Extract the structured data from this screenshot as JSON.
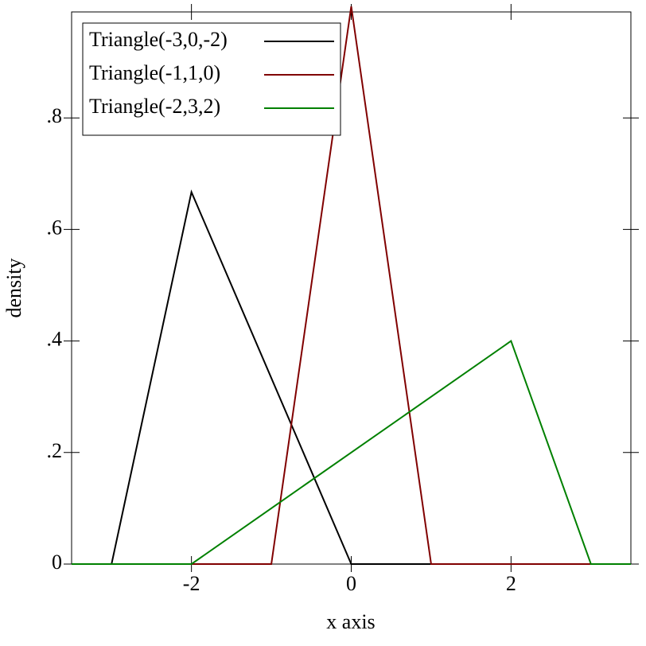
{
  "chart_data": {
    "type": "line",
    "xlabel": "x axis",
    "ylabel": "density",
    "xlim": [
      -3.5,
      3.5
    ],
    "ylim": [
      0,
      0.99
    ],
    "xticks": [
      -2,
      0,
      2
    ],
    "yticks": [
      {
        "value": 0,
        "label": "0"
      },
      {
        "value": 0.2,
        "label": ".2"
      },
      {
        "value": 0.4,
        "label": ".4"
      },
      {
        "value": 0.6,
        "label": ".6"
      },
      {
        "value": 0.8,
        "label": ".8"
      }
    ],
    "legend": "top-left",
    "series": [
      {
        "name": "Triangle(-3,0,-2)",
        "color": "#000000",
        "x": [
          -3.5,
          -3,
          -2,
          0,
          3.5
        ],
        "values": [
          0,
          0,
          0.667,
          0,
          0
        ]
      },
      {
        "name": "Triangle(-1,1,0)",
        "color": "#800000",
        "x": [
          -3.5,
          -1,
          0,
          1,
          3.5
        ],
        "values": [
          0,
          0,
          1,
          0,
          0
        ]
      },
      {
        "name": "Triangle(-2,3,2)",
        "color": "#008000",
        "x": [
          -3.5,
          -2,
          2,
          3,
          3.5
        ],
        "values": [
          0,
          0,
          0.4,
          0,
          0
        ]
      }
    ]
  }
}
